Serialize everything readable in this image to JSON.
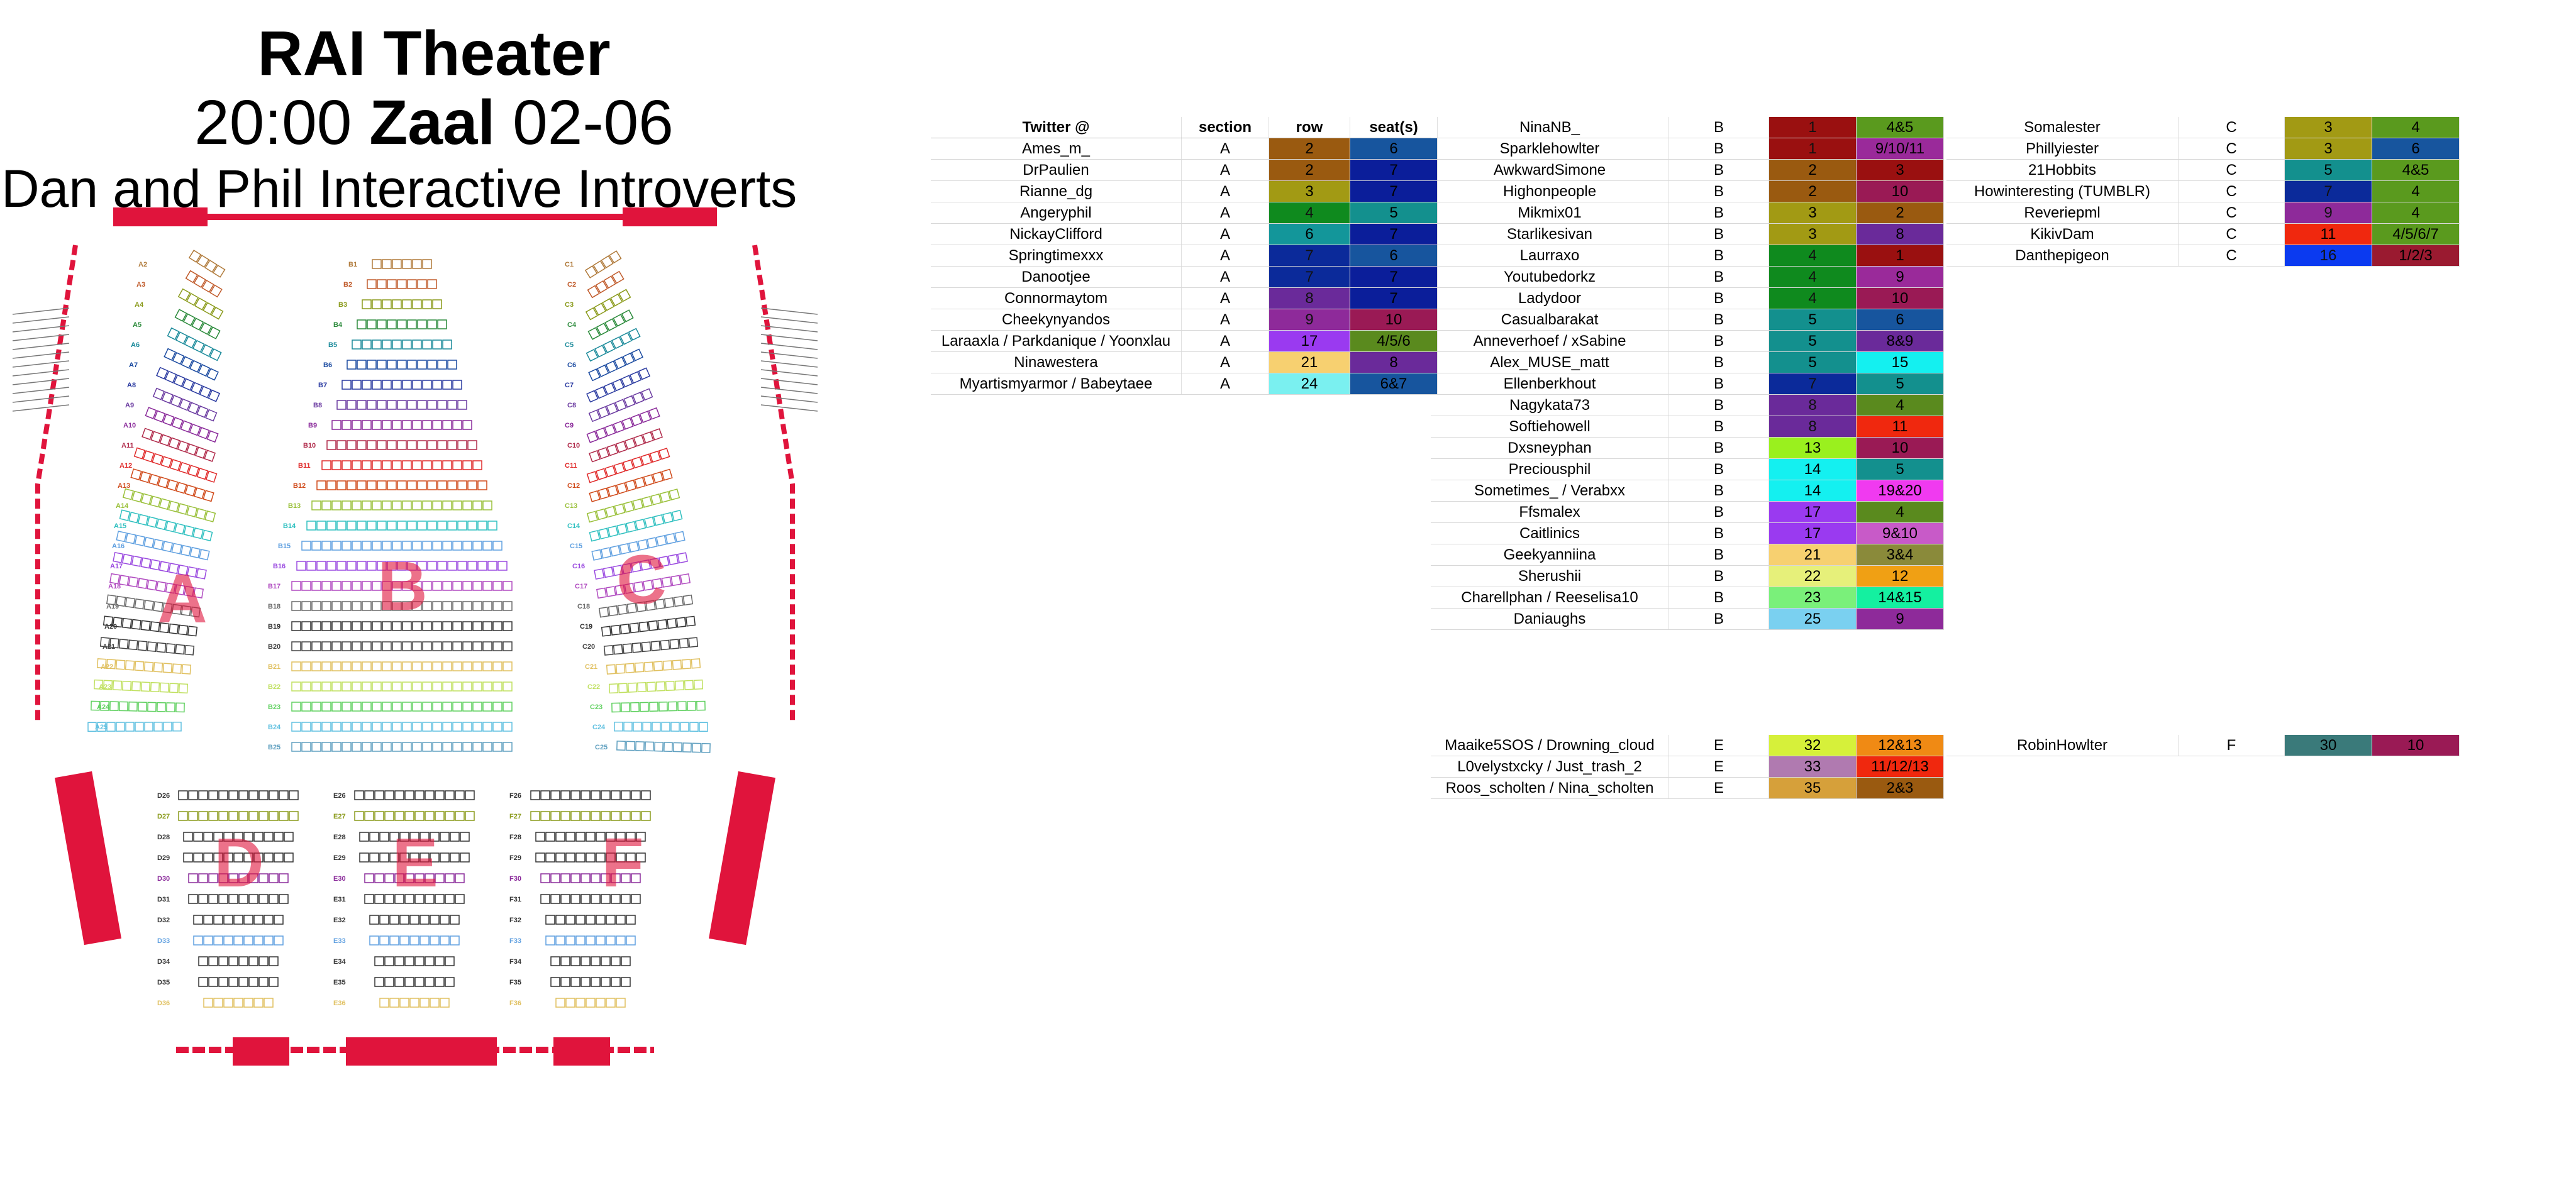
{
  "header": {
    "title": "RAI Theater",
    "time": "20:00",
    "hall": "Zaal",
    "date": "02-06",
    "event": "Dan and Phil Interactive Introverts"
  },
  "map": {
    "section_letters": [
      "A",
      "B",
      "C",
      "D",
      "E",
      "F"
    ],
    "row_labels_a": [
      "A2",
      "A3",
      "A4",
      "A5",
      "A6",
      "A7",
      "A8",
      "A9",
      "A10",
      "A11",
      "A12",
      "A13",
      "A14",
      "A15",
      "A16",
      "A17",
      "A18",
      "A19",
      "A20",
      "A21",
      "A22",
      "A23",
      "A24",
      "A25"
    ],
    "row_labels_b": [
      "B1",
      "B2",
      "B3",
      "B4",
      "B5",
      "B6",
      "B7",
      "B8",
      "B9",
      "B10",
      "B11",
      "B12",
      "B13",
      "B14",
      "B15",
      "B16",
      "B17",
      "B18",
      "B19",
      "B20",
      "B21",
      "B22",
      "B23",
      "B24",
      "B25"
    ],
    "row_labels_c": [
      "C1",
      "C2",
      "C3",
      "C4",
      "C5",
      "C6",
      "C7",
      "C8",
      "C9",
      "C10",
      "C11",
      "C12",
      "C13",
      "C14",
      "C15",
      "C16",
      "C17",
      "C18",
      "C19",
      "C20",
      "C21",
      "C22",
      "C23",
      "C24",
      "C25"
    ],
    "row_labels_d": [
      "D26",
      "D27",
      "D28",
      "D29",
      "D30",
      "D31",
      "D32",
      "D33",
      "D34",
      "D35",
      "D36"
    ],
    "row_labels_e": [
      "E26",
      "E27",
      "E28",
      "E29",
      "E30",
      "E31",
      "E32",
      "E33",
      "E34",
      "E35",
      "E36"
    ],
    "row_labels_f": [
      "F26",
      "F27",
      "F28",
      "F29",
      "F30",
      "F31",
      "F32",
      "F33",
      "F34",
      "F35",
      "F36"
    ]
  },
  "headers": {
    "twitter": "Twitter @",
    "section": "section",
    "row": "row",
    "seats": "seat(s)"
  },
  "table_a": [
    {
      "name": "Ames_m_",
      "section": "A",
      "row": "2",
      "seat": "6",
      "rc": "#9a5a10",
      "sc": "#17559e"
    },
    {
      "name": "DrPaulien",
      "section": "A",
      "row": "2",
      "seat": "7",
      "rc": "#9a5a10",
      "sc": "#0b1e9a"
    },
    {
      "name": "Rianne_dg",
      "section": "A",
      "row": "3",
      "seat": "7",
      "rc": "#a29a14",
      "sc": "#0b1e9a"
    },
    {
      "name": "Angeryphil",
      "section": "A",
      "row": "4",
      "seat": "5",
      "rc": "#0f8a1e",
      "sc": "#13908e"
    },
    {
      "name": "NickayClifford",
      "section": "A",
      "row": "6",
      "seat": "7",
      "rc": "#13969a",
      "sc": "#0b1e9a"
    },
    {
      "name": "Springtimexxx",
      "section": "A",
      "row": "7",
      "seat": "6",
      "rc": "#0b2a9a",
      "sc": "#17559e"
    },
    {
      "name": "Danootjee",
      "section": "A",
      "row": "7",
      "seat": "7",
      "rc": "#0b2a9a",
      "sc": "#0b1e9a"
    },
    {
      "name": "Connormaytom",
      "section": "A",
      "row": "8",
      "seat": "7",
      "rc": "#6a2a9a",
      "sc": "#0b1e9a"
    },
    {
      "name": "Cheekynyandos",
      "section": "A",
      "row": "9",
      "seat": "10",
      "rc": "#8e2a9a",
      "sc": "#9a1a55"
    },
    {
      "name": "Laraaxla / Parkdanique / Yoonxlau",
      "section": "A",
      "row": "17",
      "seat": "4/5/6",
      "rc": "#9a3af0",
      "sc": "#5a8a1e"
    },
    {
      "name": "Ninawestera",
      "section": "A",
      "row": "21",
      "seat": "8",
      "rc": "#f7d070",
      "sc": "#6a2a9a"
    },
    {
      "name": "Myartismyarmor / Babeytaee",
      "section": "A",
      "row": "24",
      "seat": "6&7",
      "rc": "#7af0f0",
      "sc": "#17559e"
    }
  ],
  "table_b": [
    {
      "name": "NinaNB_",
      "section": "B",
      "row": "1",
      "seat": "4&5",
      "rc": "#9a1010",
      "sc": "#5a9a1e"
    },
    {
      "name": "Sparklehowlter",
      "section": "B",
      "row": "1",
      "seat": "9/10/11",
      "rc": "#9a1010",
      "sc": "#9a2a9a"
    },
    {
      "name": "AwkwardSimone",
      "section": "B",
      "row": "2",
      "seat": "3",
      "rc": "#9a5a10",
      "sc": "#9a1010"
    },
    {
      "name": "Highonpeople",
      "section": "B",
      "row": "2",
      "seat": "10",
      "rc": "#9a5a10",
      "sc": "#9a1a55"
    },
    {
      "name": "Mikmix01",
      "section": "B",
      "row": "3",
      "seat": "2",
      "rc": "#a29a14",
      "sc": "#9a5a10"
    },
    {
      "name": "Starlikesivan",
      "section": "B",
      "row": "3",
      "seat": "8",
      "rc": "#a29a14",
      "sc": "#6a2a9a"
    },
    {
      "name": "Laurraxo",
      "section": "B",
      "row": "4",
      "seat": "1",
      "rc": "#0f8a1e",
      "sc": "#9a1010"
    },
    {
      "name": "Youtubedorkz",
      "section": "B",
      "row": "4",
      "seat": "9",
      "rc": "#0f8a1e",
      "sc": "#9a2a9a"
    },
    {
      "name": "Ladydoor",
      "section": "B",
      "row": "4",
      "seat": "10",
      "rc": "#0f8a1e",
      "sc": "#9a1a55"
    },
    {
      "name": "Casualbarakat",
      "section": "B",
      "row": "5",
      "seat": "6",
      "rc": "#13908e",
      "sc": "#17559e"
    },
    {
      "name": "Anneverhoef / xSabine",
      "section": "B",
      "row": "5",
      "seat": "8&9",
      "rc": "#13908e",
      "sc": "#6a2a9a"
    },
    {
      "name": "Alex_MUSE_matt",
      "section": "B",
      "row": "5",
      "seat": "15",
      "rc": "#13908e",
      "sc": "#14f0f0"
    },
    {
      "name": "Ellenberkhout",
      "section": "B",
      "row": "7",
      "seat": "5",
      "rc": "#0b2a9a",
      "sc": "#13908e"
    },
    {
      "name": "Nagykata73",
      "section": "B",
      "row": "8",
      "seat": "4",
      "rc": "#6a2a9a",
      "sc": "#5a8a1e"
    },
    {
      "name": "Softiehowell",
      "section": "B",
      "row": "8",
      "seat": "11",
      "rc": "#6a2a9a",
      "sc": "#f0280e"
    },
    {
      "name": "Dxsneyphan",
      "section": "B",
      "row": "13",
      "seat": "10",
      "rc": "#9af01e",
      "sc": "#9a1a55"
    },
    {
      "name": "Preciousphil",
      "section": "B",
      "row": "14",
      "seat": "5",
      "rc": "#14f0f0",
      "sc": "#13908e"
    },
    {
      "name": "Sometimes_ / Verabxx",
      "section": "B",
      "row": "14",
      "seat": "19&20",
      "rc": "#14f0f0",
      "sc": "#f03af0"
    },
    {
      "name": "Ffsmalex",
      "section": "B",
      "row": "17",
      "seat": "4",
      "rc": "#9a3af0",
      "sc": "#5a8a1e"
    },
    {
      "name": "Caitlinics",
      "section": "B",
      "row": "17",
      "seat": "9&10",
      "rc": "#9a3af0",
      "sc": "#c85ac8"
    },
    {
      "name": "Geekyanniina",
      "section": "B",
      "row": "21",
      "seat": "3&4",
      "rc": "#f7d070",
      "sc": "#8a8a3a"
    },
    {
      "name": "Sherushii",
      "section": "B",
      "row": "22",
      "seat": "12",
      "rc": "#e6f07a",
      "sc": "#f0a014"
    },
    {
      "name": "Charellphan / Reeselisa10",
      "section": "B",
      "row": "23",
      "seat": "14&15",
      "rc": "#7af07a",
      "sc": "#14f0a0"
    },
    {
      "name": "Daniaughs",
      "section": "B",
      "row": "25",
      "seat": "9",
      "rc": "#7ad0f0",
      "sc": "#8e2a9a"
    }
  ],
  "table_c": [
    {
      "name": "Somalester",
      "section": "C",
      "row": "3",
      "seat": "4",
      "rc": "#a29a14",
      "sc": "#5a9a1e"
    },
    {
      "name": "Phillyiester",
      "section": "C",
      "row": "3",
      "seat": "6",
      "rc": "#a29a14",
      "sc": "#17559e"
    },
    {
      "name": "21Hobbits",
      "section": "C",
      "row": "5",
      "seat": "4&5",
      "rc": "#13908e",
      "sc": "#5a9a1e"
    },
    {
      "name": "Howinteresting (TUMBLR)",
      "section": "C",
      "row": "7",
      "seat": "4",
      "rc": "#0b2a9a",
      "sc": "#5a9a1e"
    },
    {
      "name": "Reveriepml",
      "section": "C",
      "row": "9",
      "seat": "4",
      "rc": "#8e2a9a",
      "sc": "#5a9a1e"
    },
    {
      "name": "KikivDam",
      "section": "C",
      "row": "11",
      "seat": "4/5/6/7",
      "rc": "#f0280e",
      "sc": "#5a9a1e"
    },
    {
      "name": "Danthepigeon",
      "section": "C",
      "row": "16",
      "seat": "1/2/3",
      "rc": "#0b3af0",
      "sc": "#9a1a30"
    }
  ],
  "table_e": [
    {
      "name": "Maaike5SOS / Drowning_cloud",
      "section": "E",
      "row": "32",
      "seat": "12&13",
      "rc": "#d6f03a",
      "sc": "#f08a14"
    },
    {
      "name": "L0velystxcky / Just_trash_2",
      "section": "E",
      "row": "33",
      "seat": "11/12/13",
      "rc": "#b07ab0",
      "sc": "#f0280e"
    },
    {
      "name": "Roos_scholten / Nina_scholten",
      "section": "E",
      "row": "35",
      "seat": "2&3",
      "rc": "#d6a03a",
      "sc": "#9a5a10"
    }
  ],
  "table_f": [
    {
      "name": "RobinHowlter",
      "section": "F",
      "row": "30",
      "seat": "10",
      "rc": "#3a7a7a",
      "sc": "#9a1a55"
    }
  ]
}
